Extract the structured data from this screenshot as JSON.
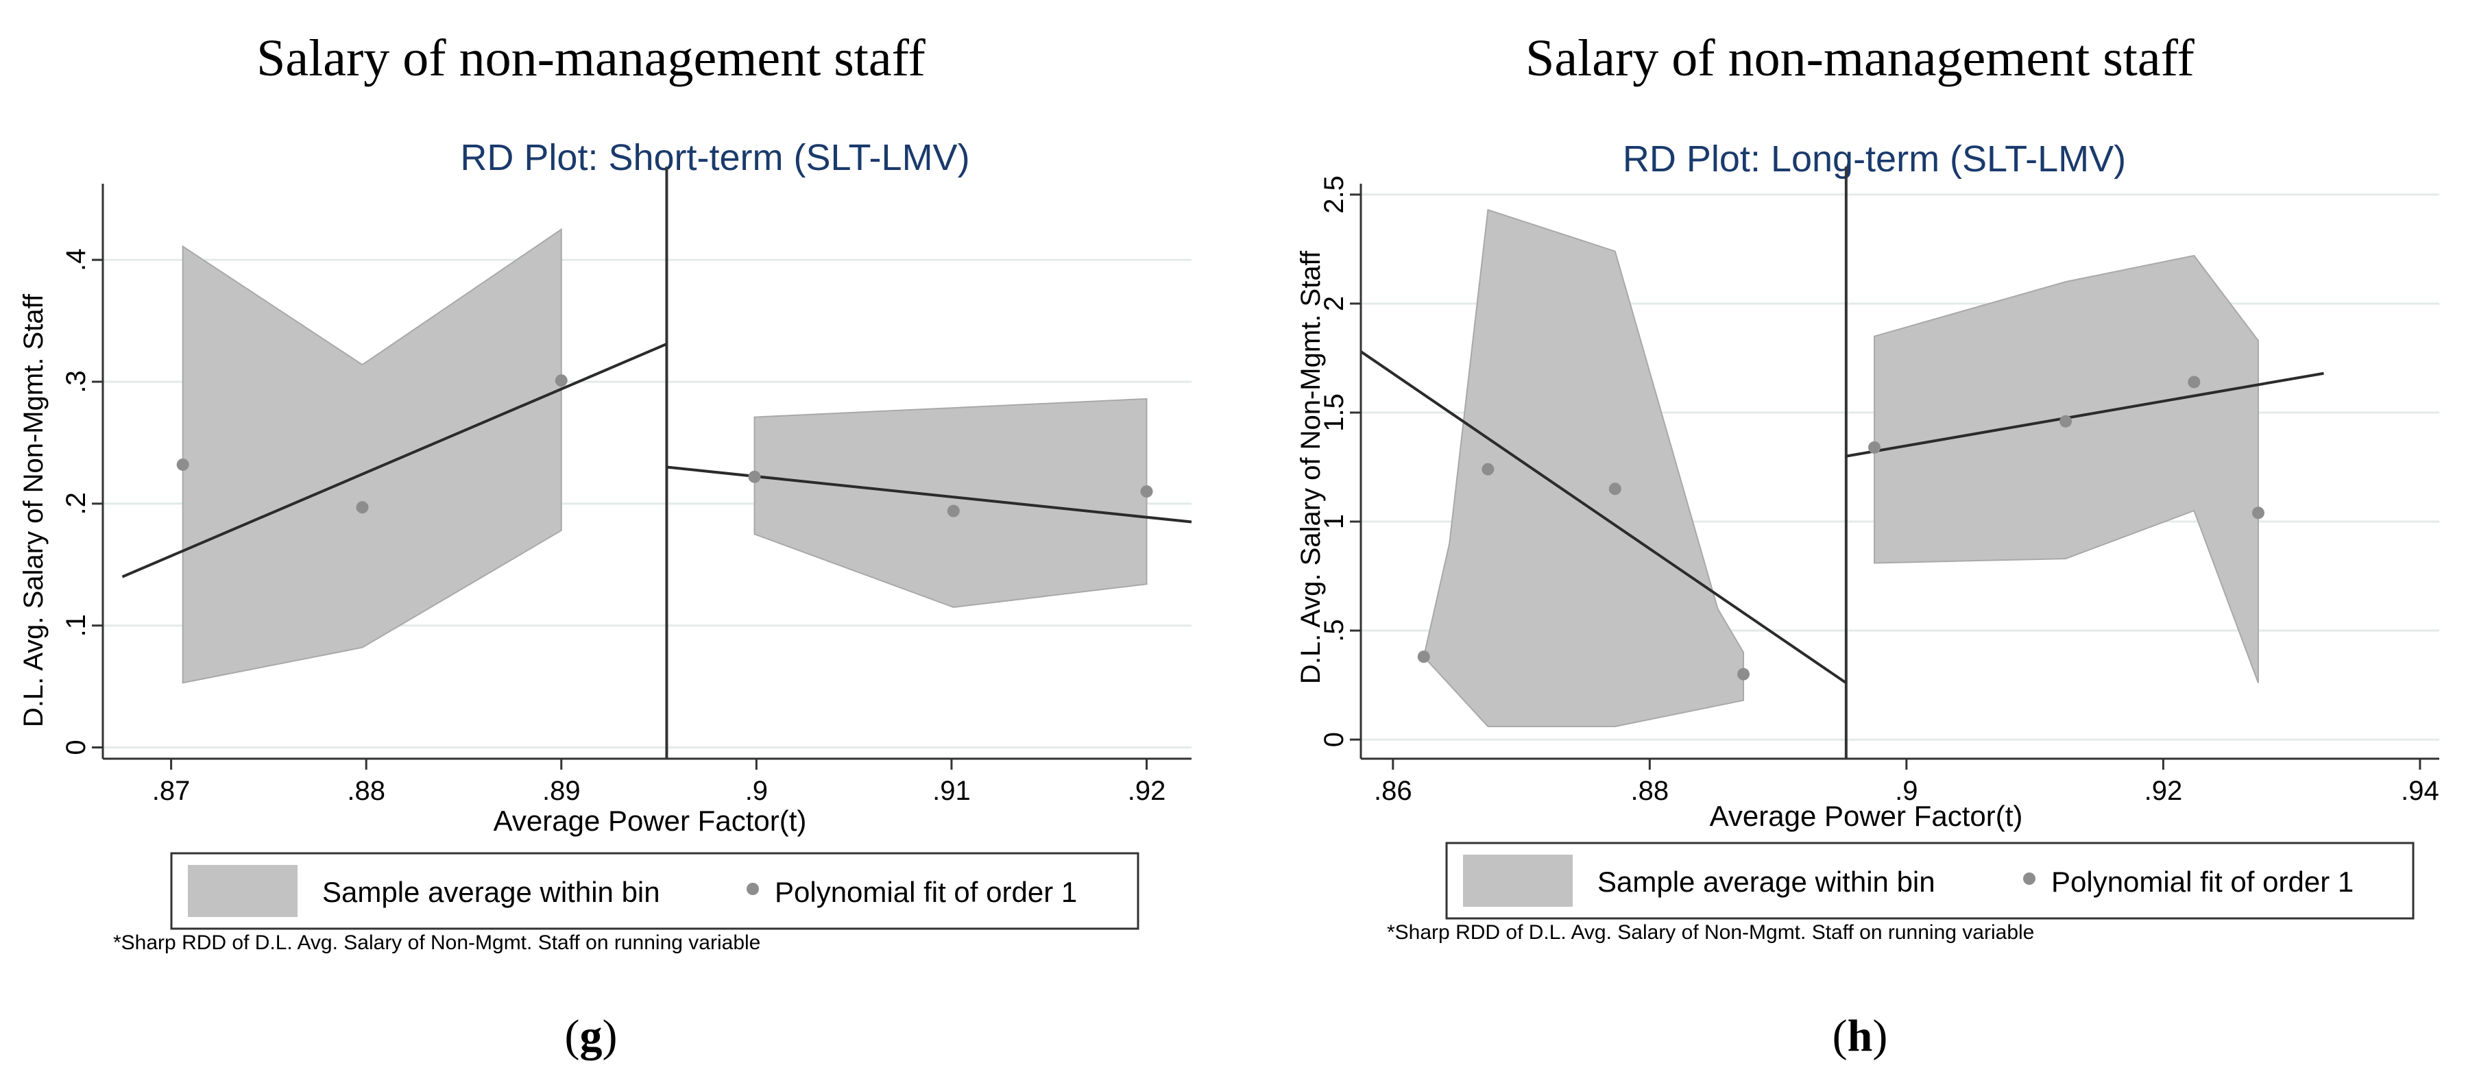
{
  "panels": [
    {
      "panel_title": "Salary of non-management staff",
      "caption_letter": "g",
      "legend": {
        "band_label": "Sample average within bin",
        "dot_label": "Polynomial fit of order 1"
      },
      "note": "*Sharp RDD of D.L. Avg. Salary of Non-Mgmt. Staff on running variable",
      "chart_data": {
        "type": "scatter",
        "title": "RD Plot: Short-term (SLT-LMV)",
        "xlabel": "Average Power Factor(t)",
        "ylabel": "D.L. Avg. Salary of Non-Mgmt. Staff",
        "xlim": [
          0.8665,
          0.9223
        ],
        "ylim": [
          -0.0025,
          0.4625
        ],
        "x_ticks": [
          ".87",
          ".88",
          ".89",
          ".9",
          ".91",
          ".92"
        ],
        "x_tick_values": [
          0.87,
          0.88,
          0.89,
          0.9,
          0.91,
          0.92
        ],
        "y_ticks": [
          "0",
          ".1",
          ".2",
          ".3",
          ".4"
        ],
        "y_tick_values": [
          0,
          0.1,
          0.2,
          0.3,
          0.4
        ],
        "grid": true,
        "cutoff": 0.8954,
        "points": [
          {
            "x": 0.8706,
            "y": 0.232
          },
          {
            "x": 0.8798,
            "y": 0.197
          },
          {
            "x": 0.89,
            "y": 0.301
          },
          {
            "x": 0.8999,
            "y": 0.222
          },
          {
            "x": 0.9101,
            "y": 0.194
          },
          {
            "x": 0.92,
            "y": 0.21
          }
        ],
        "fit_lines": [
          {
            "x": [
              0.8675,
              0.8954
            ],
            "y": [
              0.14,
              0.331
            ]
          },
          {
            "x": [
              0.8954,
              0.9223
            ],
            "y": [
              0.23,
              0.185
            ]
          }
        ],
        "ci_bands": [
          {
            "upper": [
              [
                0.8706,
                0.411
              ],
              [
                0.8798,
                0.314
              ],
              [
                0.89,
                0.425
              ]
            ],
            "lower": [
              [
                0.8706,
                0.053
              ],
              [
                0.8798,
                0.082
              ],
              [
                0.89,
                0.178
              ]
            ]
          },
          {
            "upper": [
              [
                0.8999,
                0.271
              ],
              [
                0.92,
                0.286
              ]
            ],
            "lower": [
              [
                0.8999,
                0.175
              ],
              [
                0.9101,
                0.115
              ],
              [
                0.92,
                0.134
              ]
            ]
          }
        ]
      }
    },
    {
      "panel_title": "Salary of non-management staff",
      "caption_letter": "h",
      "legend": {
        "band_label": "Sample average within bin",
        "dot_label": "Polynomial fit of order 1"
      },
      "note": "*Sharp RDD of D.L. Avg. Salary of Non-Mgmt. Staff on running variable",
      "chart_data": {
        "type": "scatter",
        "title": "RD Plot: Long-term (SLT-LMV)",
        "xlabel": "Average Power Factor(t)",
        "ylabel": "D.L. Avg. Salary of Non-Mgmt. Staff",
        "xlim": [
          0.8575,
          0.9415
        ],
        "ylim": [
          -0.05,
          2.55
        ],
        "x_ticks": [
          ".86",
          ".88",
          ".9",
          ".92",
          ".94"
        ],
        "x_tick_values": [
          0.86,
          0.88,
          0.9,
          0.92,
          0.94
        ],
        "y_ticks": [
          "0",
          ".5",
          "1",
          "1.5",
          "2",
          "2.5"
        ],
        "y_tick_values": [
          0,
          0.5,
          1,
          1.5,
          2,
          2.5
        ],
        "grid": true,
        "cutoff": 0.8953,
        "points": [
          {
            "x": 0.8624,
            "y": 0.38
          },
          {
            "x": 0.8674,
            "y": 1.24
          },
          {
            "x": 0.8773,
            "y": 1.15
          },
          {
            "x": 0.8873,
            "y": 0.3
          },
          {
            "x": 0.8975,
            "y": 1.34
          },
          {
            "x": 0.9124,
            "y": 1.46
          },
          {
            "x": 0.9224,
            "y": 1.64
          },
          {
            "x": 0.9274,
            "y": 1.04
          }
        ],
        "fit_lines": [
          {
            "x": [
              0.8575,
              0.8953
            ],
            "y": [
              1.78,
              0.26
            ]
          },
          {
            "x": [
              0.8953,
              0.9325
            ],
            "y": [
              1.3,
              1.68
            ]
          }
        ],
        "ci_bands": [
          {
            "upper": [
              [
                0.8624,
                0.38
              ],
              [
                0.8644,
                0.9
              ],
              [
                0.8674,
                2.43
              ],
              [
                0.8773,
                2.24
              ],
              [
                0.8853,
                0.6
              ],
              [
                0.8873,
                0.4
              ]
            ],
            "lower": [
              [
                0.8624,
                0.38
              ],
              [
                0.8674,
                0.06
              ],
              [
                0.8773,
                0.06
              ],
              [
                0.8873,
                0.18
              ]
            ]
          },
          {
            "upper": [
              [
                0.8975,
                1.85
              ],
              [
                0.9124,
                2.1
              ],
              [
                0.9224,
                2.22
              ],
              [
                0.9274,
                1.83
              ]
            ],
            "lower": [
              [
                0.8975,
                0.81
              ],
              [
                0.9124,
                0.83
              ],
              [
                0.9224,
                1.05
              ],
              [
                0.9274,
                0.26
              ]
            ]
          }
        ]
      }
    }
  ],
  "colors": {
    "title_blue": "#1a3a6c",
    "band_fill": "#c2c2c2",
    "band_edge": "#a9a9a9",
    "dot": "#8d8d8d",
    "fit_line": "#2b2b2b",
    "cutoff_line": "#333333",
    "grid": "#e3ebea",
    "axis": "#333333",
    "text": "#000000"
  }
}
